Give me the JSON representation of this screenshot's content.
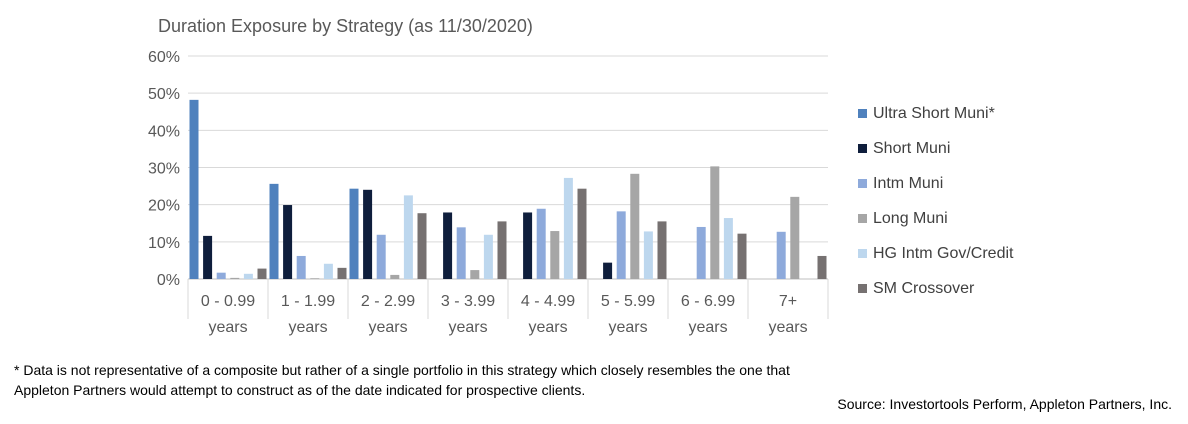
{
  "chart_data": {
    "type": "bar",
    "title": "Duration Exposure by Strategy (as 11/30/2020)",
    "categories": [
      [
        "0 - 0.99",
        "years"
      ],
      [
        "1 - 1.99",
        "years"
      ],
      [
        "2 - 2.99",
        "years"
      ],
      [
        "3 - 3.99",
        "years"
      ],
      [
        "4 - 4.99",
        "years"
      ],
      [
        "5 - 5.99",
        "years"
      ],
      [
        "6 - 6.99",
        "years"
      ],
      [
        "7+",
        "years"
      ]
    ],
    "yticks": [
      "0%",
      "10%",
      "20%",
      "30%",
      "40%",
      "50%",
      "60%"
    ],
    "ylim": [
      0,
      60
    ],
    "series": [
      {
        "name": "Ultra Short Muni*",
        "color": "#4f81bd",
        "values": [
          48.2,
          25.6,
          24.3,
          0,
          0,
          0,
          0,
          0
        ]
      },
      {
        "name": "Short Muni",
        "color": "#0f1e3c",
        "values": [
          11.6,
          19.9,
          24.0,
          17.9,
          17.9,
          4.4,
          0,
          0
        ]
      },
      {
        "name": "Intm Muni",
        "color": "#8eaadb",
        "values": [
          1.7,
          6.2,
          11.9,
          13.9,
          18.9,
          18.2,
          14.0,
          12.7
        ]
      },
      {
        "name": "Long Muni",
        "color": "#a6a6a6",
        "values": [
          0.3,
          0.2,
          1.1,
          2.4,
          12.9,
          28.3,
          30.3,
          22.1
        ]
      },
      {
        "name": "HG Intm Gov/Credit",
        "color": "#bdd7ee",
        "values": [
          1.4,
          4.1,
          22.5,
          11.9,
          27.2,
          12.8,
          16.4,
          0
        ]
      },
      {
        "name": "SM Crossover",
        "color": "#767171",
        "values": [
          2.8,
          3.0,
          17.7,
          15.5,
          24.3,
          15.5,
          12.2,
          6.2
        ]
      }
    ]
  },
  "footnote": "* Data is not representative of a composite but rather of a single portfolio in this strategy which closely resembles the one that Appleton Partners would attempt to construct as of the date indicated for prospective clients.",
  "source": "Source: Investortools Perform, Appleton Partners, Inc."
}
